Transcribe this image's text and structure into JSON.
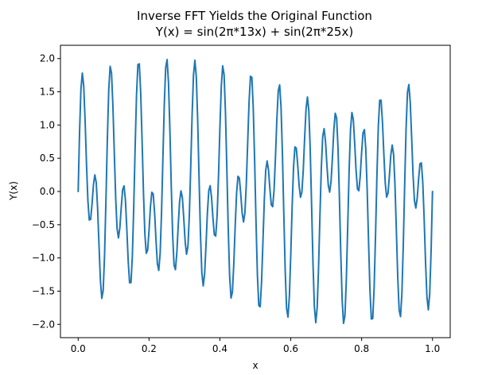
{
  "chart_data": {
    "type": "line",
    "title": "Inverse FFT Yields the Original Function",
    "subtitle": "Y(x) = sin(2π*13x) + sin(2π*25x)",
    "xlabel": "x",
    "ylabel": "Y(x)",
    "xlim": [
      -0.05,
      1.05
    ],
    "ylim": [
      -2.2,
      2.2
    ],
    "xticks": [
      0.0,
      0.2,
      0.4,
      0.6,
      0.8,
      1.0
    ],
    "xtick_labels": [
      "0.0",
      "0.2",
      "0.4",
      "0.6",
      "0.8",
      "1.0"
    ],
    "yticks": [
      -2.0,
      -1.5,
      -1.0,
      -0.5,
      0.0,
      0.5,
      1.0,
      1.5,
      2.0
    ],
    "ytick_labels": [
      "−2.0",
      "−1.5",
      "−1.0",
      "−0.5",
      "0.0",
      "0.5",
      "1.0",
      "1.5",
      "2.0"
    ],
    "grid": false,
    "series": [
      {
        "function": "sin(2π*13x) + sin(2π*25x)",
        "x_start": 0.0,
        "x_end": 1.0,
        "samples": 256,
        "color": "#1f77b4"
      }
    ]
  }
}
